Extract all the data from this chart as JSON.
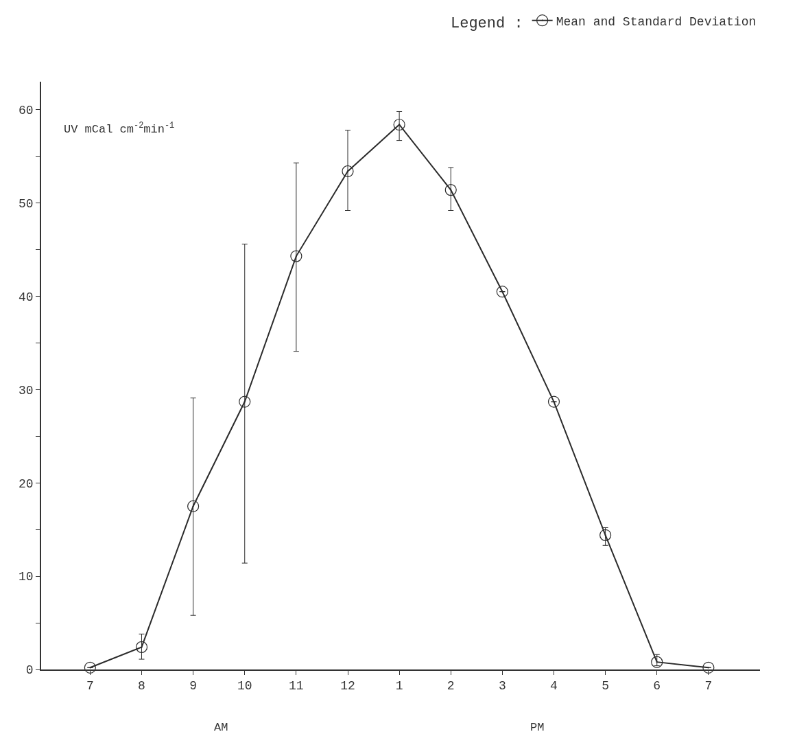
{
  "chart_data": {
    "type": "line",
    "categories": [
      "7",
      "8",
      "9",
      "10",
      "11",
      "12",
      "1",
      "2",
      "3",
      "4",
      "5",
      "6",
      "7"
    ],
    "series": [
      {
        "name": "Mean and Standard Deviation",
        "color": "#2b2b2b",
        "values": [
          0.2,
          2.4,
          17.5,
          28.7,
          44.3,
          53.4,
          58.4,
          51.4,
          40.5,
          28.7,
          14.4,
          0.8,
          0.2
        ],
        "errors": [
          null,
          [
            1.1,
            3.8
          ],
          [
            5.8,
            29.1
          ],
          [
            11.4,
            45.6
          ],
          [
            34.1,
            54.3
          ],
          [
            49.2,
            57.8
          ],
          [
            56.7,
            59.8
          ],
          [
            49.2,
            53.8
          ],
          null,
          null,
          [
            13.3,
            15.2
          ],
          [
            0.4,
            1.6
          ],
          null
        ]
      }
    ],
    "ylabel": "UV mCal cm$^{-2}$min$^{-1}$",
    "legend_title": "Legend :",
    "annotations": [
      "AM",
      "PM"
    ],
    "ylim": [
      0,
      63
    ],
    "yticks": [
      0,
      {
        "value": 5,
        "label": null
      },
      10,
      {
        "value": 15,
        "label": null
      },
      20,
      {
        "value": 25,
        "label": null
      },
      30,
      {
        "value": 35,
        "label": null
      },
      40,
      {
        "value": 45,
        "label": null
      },
      50,
      {
        "value": 55,
        "label": null
      },
      60
    ],
    "legend": "top right",
    "marker": "circle",
    "line_style": "solid"
  }
}
